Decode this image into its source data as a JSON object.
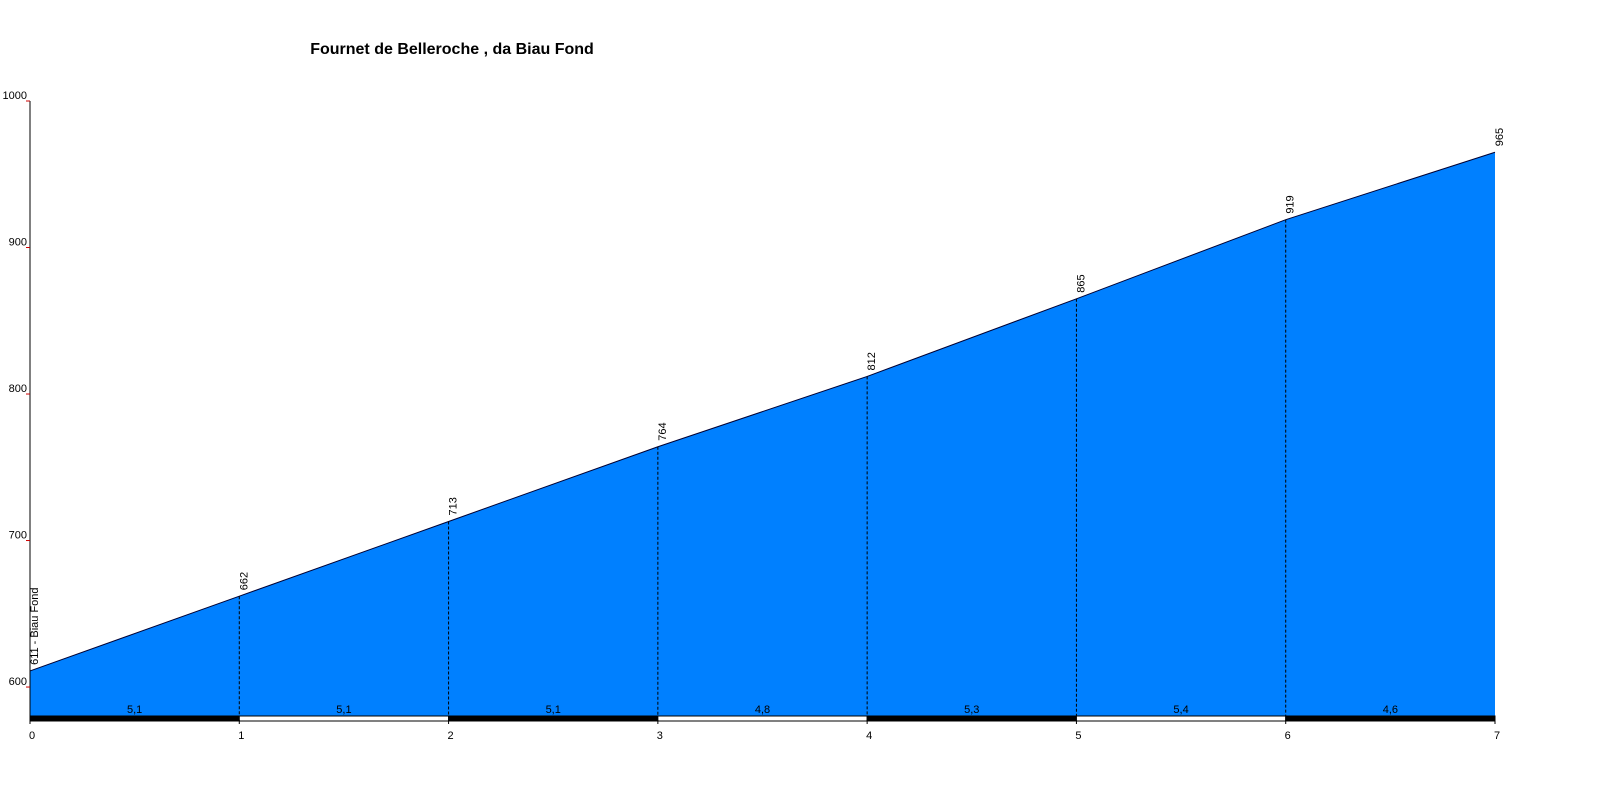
{
  "chart_data": {
    "type": "area",
    "title": "Fournet de Belleroche , da Biau Fond",
    "x": [
      0,
      1,
      2,
      3,
      4,
      5,
      6,
      7
    ],
    "values": [
      611,
      662,
      713,
      764,
      812,
      865,
      919,
      965
    ],
    "value_labels": [
      "611 - Biau Fond",
      "662",
      "713",
      "764",
      "812",
      "865",
      "919",
      "965"
    ],
    "gradients": [
      5.1,
      5.1,
      5.1,
      4.8,
      5.3,
      5.4,
      4.6
    ],
    "gradient_labels": [
      "5,1",
      "5,1",
      "5,1",
      "4,8",
      "5,3",
      "5,4",
      "4,6"
    ],
    "color": "#0080ff",
    "xlim": [
      0,
      7
    ],
    "xticks": [
      0,
      1,
      2,
      3,
      4,
      5,
      6,
      7
    ],
    "ylim": [
      577.5,
      1000
    ],
    "yticks": [
      600,
      700,
      800,
      900,
      1000
    ]
  }
}
